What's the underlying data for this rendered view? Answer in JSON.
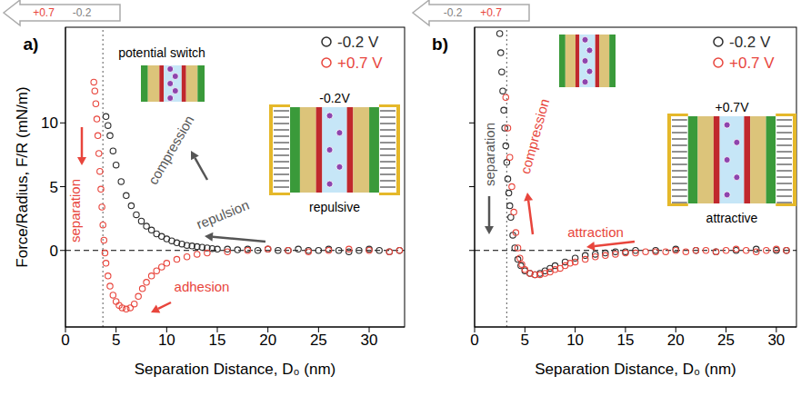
{
  "chart_data": [
    {
      "type": "scatter",
      "panel": "a)",
      "xlabel": "Separation Distance, D₀ (nm)",
      "ylabel": "Force/Radius, F/R (mN/m)",
      "xlim": [
        0,
        33.5
      ],
      "xticks": [
        0,
        5,
        10,
        15,
        20,
        25,
        30
      ],
      "ylim": [
        -6,
        17.5
      ],
      "yticks": [
        0,
        5,
        10
      ],
      "legend": "upper right",
      "marker": "circle",
      "hlines": [
        0
      ],
      "vlines": [
        3.7
      ],
      "series": [
        {
          "name": "-0.2 V",
          "color": "#2b2b2b",
          "x": [
            33,
            32,
            31,
            30,
            29,
            28,
            27,
            26,
            25,
            24,
            23,
            22,
            21,
            20,
            19,
            18,
            17,
            16,
            15,
            14.5,
            14,
            13.5,
            13,
            12.5,
            12,
            11.5,
            11,
            10.5,
            10,
            9.5,
            9,
            8.5,
            8,
            7.5,
            7,
            6.5,
            6,
            5.5,
            5,
            4.7,
            4.4,
            4.2,
            4.0
          ],
          "values": [
            0,
            -0.1,
            0,
            0.1,
            0,
            -0.1,
            0,
            0.1,
            0,
            0,
            0.1,
            0,
            0,
            0.1,
            0,
            0.1,
            0.05,
            0.1,
            0.1,
            0.15,
            0.2,
            0.25,
            0.3,
            0.35,
            0.4,
            0.5,
            0.6,
            0.75,
            0.9,
            1.1,
            1.3,
            1.6,
            1.9,
            2.3,
            2.8,
            3.5,
            4.3,
            5.4,
            6.7,
            7.8,
            9.0,
            9.8,
            10.5
          ]
        },
        {
          "name": "+0.7 V",
          "color": "#e8453c",
          "x": [
            2.8,
            2.9,
            3.0,
            3.1,
            3.2,
            3.3,
            3.4,
            3.5,
            3.6,
            3.7,
            3.8,
            3.9,
            4.0,
            4.2,
            4.4,
            4.7,
            5.0,
            5.3,
            5.6,
            6.0,
            6.4,
            6.8,
            7.2,
            7.6,
            8.0,
            8.5,
            9,
            9.5,
            10,
            11,
            12,
            13,
            14,
            16,
            18,
            20,
            22,
            24,
            26,
            28,
            30,
            32,
            33
          ],
          "values": [
            13.2,
            12.5,
            11.5,
            10.3,
            9.0,
            7.6,
            6.2,
            4.8,
            3.4,
            2.0,
            0.8,
            -0.2,
            -1.0,
            -2.0,
            -2.8,
            -3.5,
            -4.0,
            -4.3,
            -4.5,
            -4.6,
            -4.5,
            -4.2,
            -3.6,
            -3.0,
            -2.5,
            -2.0,
            -1.6,
            -1.3,
            -1.0,
            -0.7,
            -0.5,
            -0.3,
            -0.2,
            -0.1,
            0,
            0.1,
            0,
            -0.1,
            0,
            0.1,
            0,
            -0.1,
            0
          ]
        }
      ],
      "annotations": [
        {
          "text": "potential switch",
          "color": "#000000"
        },
        {
          "text": "compression",
          "color": "#555555"
        },
        {
          "text": "repulsion",
          "color": "#555555"
        },
        {
          "text": "separation",
          "color": "#e8453c"
        },
        {
          "text": "adhesion",
          "color": "#e8453c"
        },
        {
          "text": "-0.2V",
          "color": "#000000"
        },
        {
          "text": "repulsive",
          "color": "#000000"
        },
        {
          "text": "+0.7",
          "color": "#e8453c"
        },
        {
          "text": "-0.2",
          "color": "#808080"
        }
      ]
    },
    {
      "type": "scatter",
      "panel": "b)",
      "xlabel": "Separation Distance, D₀ (nm)",
      "xlim": [
        0,
        32
      ],
      "xticks": [
        0,
        5,
        10,
        15,
        20,
        25,
        30
      ],
      "ylim": [
        -6,
        17.5
      ],
      "yticks": [
        0,
        5,
        10
      ],
      "tick_labels": "x",
      "legend": "upper right",
      "marker": "circle",
      "hlines": [
        0
      ],
      "vlines": [
        3.2
      ],
      "series": [
        {
          "name": "-0.2 V",
          "color": "#2b2b2b",
          "x": [
            2.5,
            2.6,
            2.7,
            2.8,
            2.9,
            3.0,
            3.1,
            3.2,
            3.3,
            3.4,
            3.5,
            3.6,
            3.8,
            4.0,
            4.3,
            4.6,
            5.0,
            5.5,
            6.0,
            6.5,
            7.0,
            7.5,
            8,
            9,
            10,
            11,
            12,
            13,
            14,
            15,
            16,
            18,
            20,
            22,
            24,
            26,
            28,
            30,
            31
          ],
          "values": [
            17.0,
            15.5,
            14.0,
            12.5,
            11.0,
            9.6,
            8.2,
            6.9,
            5.6,
            4.5,
            3.5,
            2.6,
            1.2,
            0.2,
            -0.7,
            -1.2,
            -1.6,
            -1.8,
            -1.9,
            -1.8,
            -1.6,
            -1.4,
            -1.2,
            -0.9,
            -0.6,
            -0.4,
            -0.3,
            -0.2,
            -0.1,
            -0.1,
            0,
            0,
            0.1,
            0,
            -0.1,
            0,
            0.1,
            0,
            0
          ]
        },
        {
          "name": "+0.7 V",
          "color": "#e8453c",
          "x": [
            31,
            30,
            29,
            28,
            27,
            26,
            25,
            24,
            23,
            22,
            21,
            20,
            19,
            18,
            17,
            16,
            15,
            14,
            13,
            12,
            11,
            10,
            9.5,
            9,
            8.5,
            8,
            7.5,
            7,
            6.5,
            6,
            5.5,
            5,
            4.7,
            4.5,
            4.3,
            4.1,
            3.9,
            3.7,
            3.5,
            3.3,
            3.1
          ],
          "values": [
            0,
            0.1,
            0,
            -0.1,
            0,
            0.1,
            0,
            -0.1,
            0,
            0,
            -0.1,
            0,
            -0.1,
            -0.1,
            -0.1,
            -0.2,
            -0.2,
            -0.3,
            -0.4,
            -0.5,
            -0.7,
            -0.9,
            -1.0,
            -1.2,
            -1.4,
            -1.5,
            -1.7,
            -1.8,
            -1.9,
            -1.9,
            -1.8,
            -1.5,
            -1.1,
            -0.6,
            0.2,
            1.4,
            3.0,
            5.0,
            7.3,
            9.6,
            12.0
          ]
        }
      ],
      "annotations": [
        {
          "text": "separation",
          "color": "#555555"
        },
        {
          "text": "compression",
          "color": "#e8453c"
        },
        {
          "text": "attraction",
          "color": "#e8453c"
        },
        {
          "text": "+0.7V",
          "color": "#000000"
        },
        {
          "text": "attractive",
          "color": "#000000"
        },
        {
          "text": "-0.2",
          "color": "#808080"
        },
        {
          "text": "+0.7",
          "color": "#e8453c"
        }
      ]
    }
  ]
}
